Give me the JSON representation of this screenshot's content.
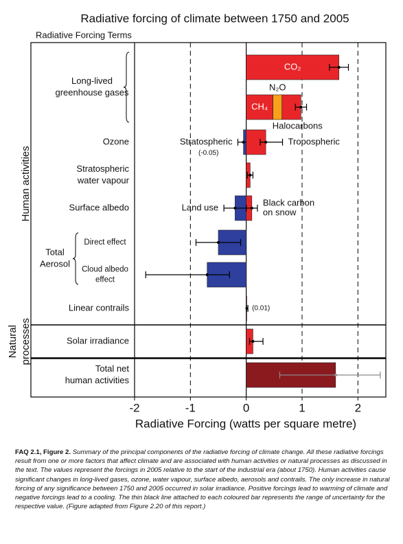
{
  "chart_data": {
    "type": "bar",
    "orientation": "horizontal",
    "title": "Radiative forcing of climate between 1750 and 2005",
    "subtitle": "Radiative Forcing Terms",
    "x_label": "Radiative Forcing  (watts per square metre)",
    "xlim": [
      -2,
      2.5
    ],
    "xticks": [
      -2,
      -1,
      0,
      1,
      2
    ],
    "grid": true,
    "sections": [
      {
        "name": [
          "Human activities"
        ],
        "rows": [
          {
            "label": [
              "Long-lived",
              "greenhouse gases"
            ],
            "levels": [
              {
                "bars": [
                  {
                    "segments": [
                      {
                        "name": "CO₂",
                        "value": 1.66,
                        "color": "#e8262a"
                      }
                    ],
                    "range": [
                      1.49,
                      1.83
                    ]
                  }
                ]
              },
              {
                "bars": [
                  {
                    "segments": [
                      {
                        "name": "CH₄",
                        "value": 0.48,
                        "color": "#e8262a"
                      },
                      {
                        "name": "N₂O",
                        "value": 0.16,
                        "color": "#f7a21b"
                      },
                      {
                        "name": "Halocarbons",
                        "value": 0.34,
                        "color": "#e8262a"
                      }
                    ],
                    "range": [
                      0.88,
                      1.08
                    ]
                  }
                ]
              }
            ]
          },
          {
            "levels": [
              {
                "label": [
                  "Ozone"
                ],
                "bars": [
                  {
                    "name": [
                      "Stratospheric"
                    ],
                    "value_label": "(-0.05)",
                    "segments": [
                      {
                        "value": -0.05,
                        "color": "#2e3f9e"
                      }
                    ],
                    "range": [
                      -0.15,
                      0.05
                    ]
                  },
                  {
                    "name": [
                      "Tropospheric"
                    ],
                    "segments": [
                      {
                        "value": 0.35,
                        "color": "#e8262a"
                      }
                    ],
                    "range": [
                      0.25,
                      0.65
                    ]
                  }
                ]
              }
            ]
          },
          {
            "levels": [
              {
                "label": [
                  "Stratospheric",
                  "water vapour"
                ],
                "bars": [
                  {
                    "segments": [
                      {
                        "value": 0.07,
                        "color": "#e8262a"
                      }
                    ],
                    "range": [
                      0.02,
                      0.12
                    ]
                  }
                ]
              }
            ]
          },
          {
            "levels": [
              {
                "label": [
                  "Surface albedo"
                ],
                "bars": [
                  {
                    "name": [
                      "Land use"
                    ],
                    "segments": [
                      {
                        "value": -0.2,
                        "color": "#2e3f9e"
                      }
                    ],
                    "range": [
                      -0.4,
                      0.0
                    ]
                  },
                  {
                    "name": [
                      "Black carbon",
                      "on snow"
                    ],
                    "segments": [
                      {
                        "value": 0.1,
                        "color": "#e8262a"
                      }
                    ],
                    "range": [
                      0.0,
                      0.2
                    ]
                  }
                ]
              }
            ]
          },
          {
            "label": [
              "Total",
              "Aerosol"
            ],
            "levels": [
              {
                "label": [
                  "Direct effect"
                ],
                "bars": [
                  {
                    "segments": [
                      {
                        "value": -0.5,
                        "color": "#2e3f9e"
                      }
                    ],
                    "range": [
                      -0.9,
                      -0.1
                    ]
                  }
                ]
              },
              {
                "label": [
                  "Cloud albedo",
                  "effect"
                ],
                "bars": [
                  {
                    "segments": [
                      {
                        "value": -0.7,
                        "color": "#2e3f9e"
                      }
                    ],
                    "range": [
                      -1.8,
                      -0.3
                    ]
                  }
                ]
              }
            ]
          },
          {
            "levels": [
              {
                "label": [
                  "Linear contrails"
                ],
                "bars": [
                  {
                    "value_label": "(0.01)",
                    "segments": [
                      {
                        "value": 0.01,
                        "color": "#e8262a"
                      }
                    ],
                    "range": [
                      0.003,
                      0.03
                    ]
                  }
                ]
              }
            ]
          }
        ]
      },
      {
        "name": [
          "Natural",
          "processes"
        ],
        "rows": [
          {
            "levels": [
              {
                "label": [
                  "Solar irradiance"
                ],
                "bars": [
                  {
                    "segments": [
                      {
                        "value": 0.12,
                        "color": "#e8262a"
                      }
                    ],
                    "range": [
                      0.06,
                      0.3
                    ]
                  }
                ]
              }
            ]
          }
        ]
      },
      {
        "rows": [
          {
            "levels": [
              {
                "label": [
                  "Total net",
                  "human activities"
                ],
                "bars": [
                  {
                    "segments": [
                      {
                        "value": 1.6,
                        "color": "#8b1a1f"
                      }
                    ],
                    "range": [
                      0.6,
                      2.4
                    ],
                    "range_color": "#888888"
                  }
                ]
              }
            ]
          }
        ]
      }
    ]
  },
  "caption": {
    "label": "FAQ 2.1, Figure 2.",
    "text": "Summary of the principal components of the radiative forcing of climate change. All these radiative forcings result from one or more factors that affect climate and are associated with human activities or natural processes as discussed in the text. The values represent the forcings in 2005 relative to the start of the industrial era (about 1750). Human activities cause significant changes in long-lived gases, ozone, water vapour, surface albedo, aerosols and contrails. The only increase in natural forcing of any significance between 1750 and 2005 occurred in solar irradiance. Positive forcings lead to warming of climate and negative forcings lead to a cooling. The thin black line attached to each coloured bar represents the range of uncertainty for the respective value. (Figure adapted from Figure 2.20 of this report.)"
  }
}
